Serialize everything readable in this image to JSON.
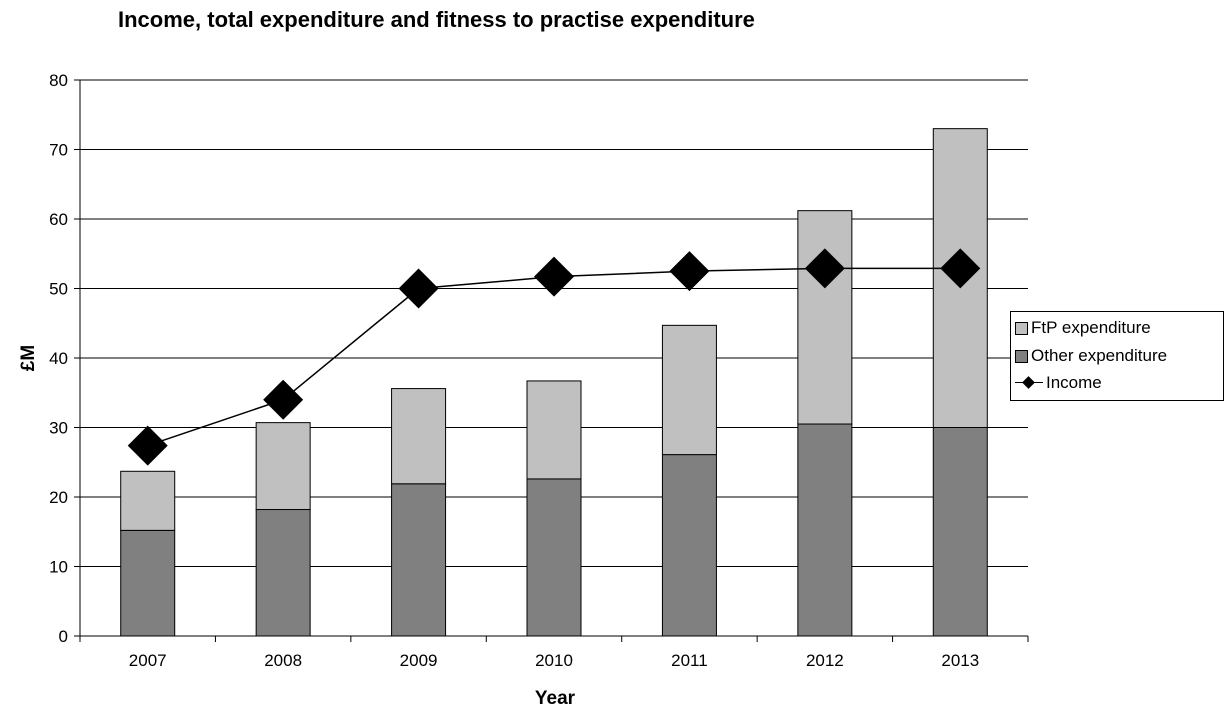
{
  "chart_data": {
    "type": "bar",
    "stacked": true,
    "title": "Income, total expenditure and fitness to practise expenditure",
    "xlabel": "Year",
    "ylabel": "£M",
    "ylim": [
      0,
      80
    ],
    "yticks": [
      0,
      10,
      20,
      30,
      40,
      50,
      60,
      70,
      80
    ],
    "categories": [
      "2007",
      "2008",
      "2009",
      "2010",
      "2011",
      "2012",
      "2013"
    ],
    "grid": true,
    "legend_position": "right",
    "series": [
      {
        "name": "Other expenditure",
        "kind": "bar",
        "color": "#808080",
        "values": [
          15.2,
          18.2,
          21.9,
          22.6,
          26.1,
          30.5,
          30.0
        ]
      },
      {
        "name": "FtP expenditure",
        "kind": "bar",
        "color": "#c0c0c0",
        "values": [
          8.5,
          12.5,
          13.7,
          14.1,
          18.6,
          30.7,
          43.0
        ]
      },
      {
        "name": "Income",
        "kind": "line",
        "color": "#000000",
        "marker": "diamond",
        "values": [
          27.4,
          34.0,
          50.0,
          51.7,
          52.5,
          52.9,
          52.9
        ]
      }
    ]
  }
}
